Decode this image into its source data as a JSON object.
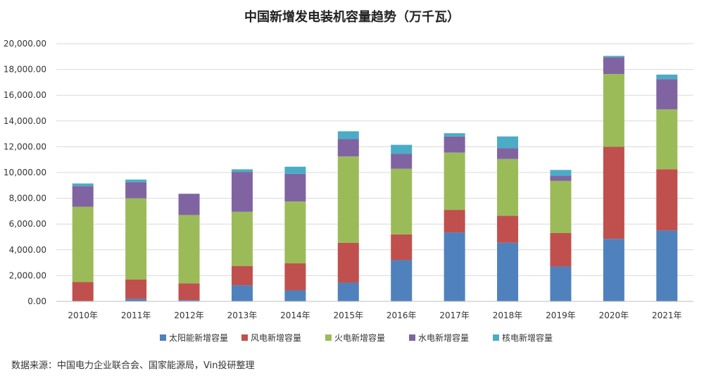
{
  "chart_data": {
    "type": "bar",
    "stacked": true,
    "title": "中国新增发电装机容量趋势（万千瓦）",
    "categories": [
      "2010年",
      "2011年",
      "2012年",
      "2013年",
      "2014年",
      "2015年",
      "2016年",
      "2017年",
      "2018年",
      "2019年",
      "2020年",
      "2021年"
    ],
    "series": [
      {
        "name": "太阳能新增容量",
        "color": "#4F81BD",
        "values": [
          0,
          200,
          100,
          1250,
          850,
          1450,
          3200,
          5350,
          4550,
          2700,
          4850,
          5500
        ]
      },
      {
        "name": "风电新增容量",
        "color": "#C0504D",
        "values": [
          1500,
          1500,
          1300,
          1500,
          2100,
          3100,
          2000,
          1750,
          2100,
          2600,
          7150,
          4750
        ]
      },
      {
        "name": "火电新增容量",
        "color": "#9BBB59",
        "values": [
          5850,
          6300,
          5300,
          4200,
          4800,
          6700,
          5100,
          4450,
          4400,
          4050,
          5650,
          4650
        ]
      },
      {
        "name": "水电新增容量",
        "color": "#8064A2",
        "values": [
          1600,
          1250,
          1650,
          3100,
          2150,
          1350,
          1150,
          1250,
          850,
          400,
          1300,
          2350
        ]
      },
      {
        "name": "核电新增容量",
        "color": "#4BACC6",
        "values": [
          200,
          200,
          0,
          200,
          550,
          600,
          700,
          250,
          900,
          450,
          100,
          350
        ]
      }
    ],
    "y_ticks": [
      "0.00",
      "2,000.00",
      "4,000.00",
      "6,000.00",
      "8,000.00",
      "10,000.00",
      "12,000.00",
      "14,000.00",
      "16,000.00",
      "18,000.00",
      "20,000.00"
    ],
    "ylim": [
      0,
      20000
    ],
    "grid": true,
    "legend_position": "bottom"
  },
  "source_note": "数据来源：中国电力企业联合会、国家能源局，Vin投研整理"
}
